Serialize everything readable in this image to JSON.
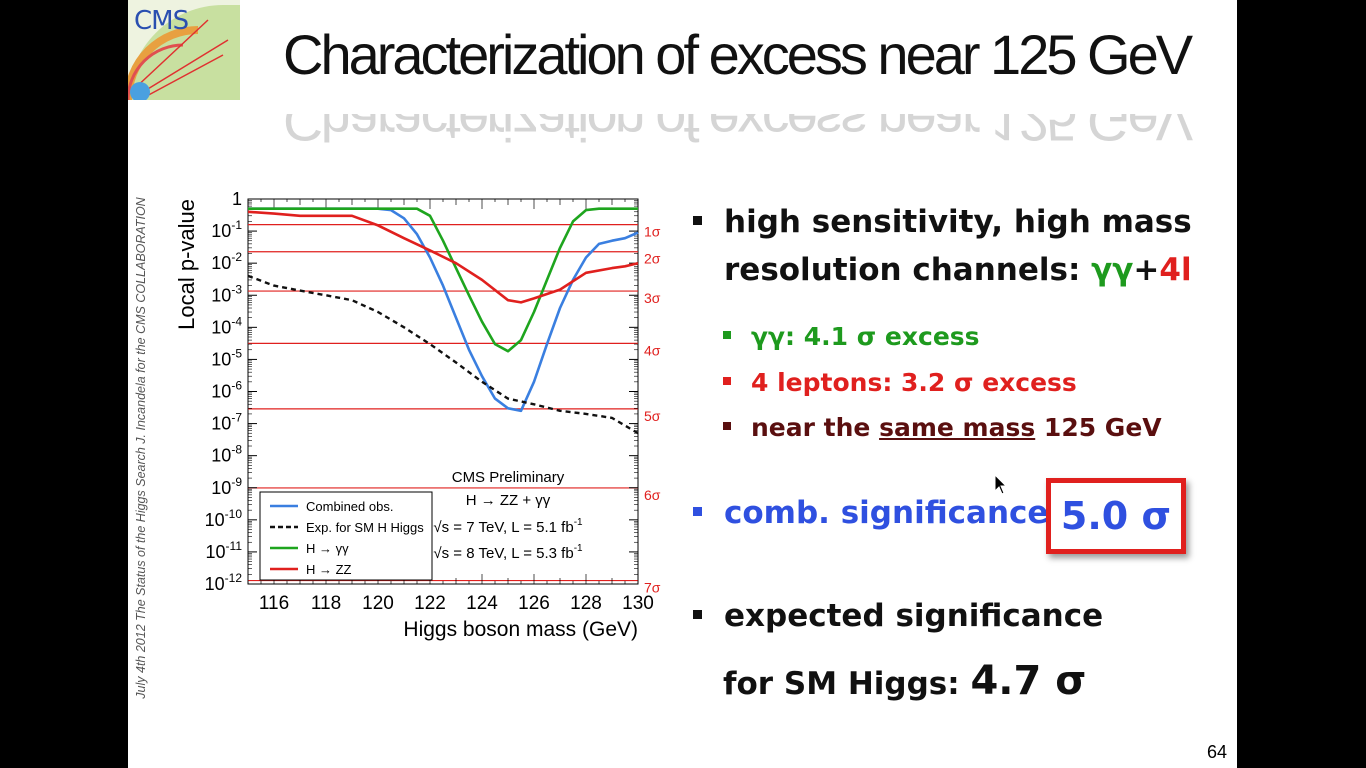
{
  "slide": {
    "logo_text": "CMS",
    "sidebar_text": "July 4th 2012  The Status of the Higgs Search   J. Incandela for the CMS COLLABORATION",
    "title": "Characterization of excess near 125 GeV",
    "page_number": "64"
  },
  "bullets": {
    "b1_line1": "high sensitivity, high mass",
    "b1_line2_prefix": "resolution channels: ",
    "b1_gg": "γγ",
    "b1_plus": "+",
    "b1_4l": "4l",
    "sub1": "γγ:  4.1 σ excess",
    "sub2_prefix": "4 leptons: ",
    "sub2_rest": "3.2 σ excess",
    "sub3_prefix": "near the ",
    "sub3_underline": "same mass",
    "sub3_rest": " 125 GeV",
    "b2": "comb. significance",
    "b2_value": "5.0 σ",
    "b3": "expected significance",
    "b4_prefix": "for SM Higgs: ",
    "b4_value": "4.7 σ"
  },
  "colors": {
    "combined": "#3a7fe0",
    "expected": "#111111",
    "gg": "#1ea51e",
    "zz": "#e0201e",
    "sigma": "#e0201e"
  },
  "chart_data": {
    "type": "line",
    "xlabel": "Higgs boson mass (GeV)",
    "ylabel": "Local p-value",
    "xlim": [
      115,
      130
    ],
    "ylim_log10": [
      -12,
      0
    ],
    "yscale": "log",
    "x_ticks": [
      116,
      118,
      120,
      122,
      124,
      126,
      128,
      130
    ],
    "y_ticks": [
      "1",
      "10-1",
      "10-2",
      "10-3",
      "10-4",
      "10-5",
      "10-6",
      "10-7",
      "10-8",
      "10-9",
      "10-10",
      "10-11",
      "10-12"
    ],
    "sigma_lines": [
      {
        "label": "1σ",
        "p": 0.1587
      },
      {
        "label": "2σ",
        "p": 0.02275
      },
      {
        "label": "3σ",
        "p": 0.00135
      },
      {
        "label": "4σ",
        "p": 3.17e-05
      },
      {
        "label": "5σ",
        "p": 2.87e-07
      },
      {
        "label": "6σ",
        "p": 9.87e-10
      },
      {
        "label": "7σ",
        "p": 1.28e-12
      }
    ],
    "annotation_title": "CMS Preliminary",
    "annotation_channel": "H → ZZ + γγ",
    "annotation_lumi1": "√s = 7 TeV, L = 5.1 fb-1",
    "annotation_lumi2": "√s = 8 TeV, L = 5.3 fb-1",
    "series": [
      {
        "name": "Combined obs.",
        "key": "combined",
        "dash": false,
        "x": [
          115,
          116,
          117,
          118,
          119,
          120,
          120.5,
          121,
          121.5,
          122,
          122.5,
          123,
          123.5,
          124,
          124.5,
          125,
          125.5,
          126,
          126.5,
          127,
          127.5,
          128,
          128.5,
          129,
          129.5,
          130
        ],
        "y": [
          0.5,
          0.5,
          0.5,
          0.5,
          0.5,
          0.5,
          0.45,
          0.25,
          0.08,
          0.015,
          0.002,
          0.0002,
          2e-05,
          3e-06,
          6e-07,
          3e-07,
          2.5e-07,
          2e-06,
          3e-05,
          0.0004,
          0.003,
          0.015,
          0.04,
          0.05,
          0.06,
          0.09
        ]
      },
      {
        "name": "Exp. for SM H Higgs",
        "key": "expected",
        "dash": true,
        "x": [
          115,
          116,
          117,
          118,
          119,
          120,
          121,
          122,
          123,
          124,
          125,
          126,
          127,
          128,
          129,
          130
        ],
        "y": [
          0.004,
          0.002,
          0.0014,
          0.001,
          0.0007,
          0.0003,
          0.0001,
          3e-05,
          8e-06,
          2e-06,
          6e-07,
          4e-07,
          2.5e-07,
          2e-07,
          1.5e-07,
          5e-08
        ]
      },
      {
        "name": "H → γγ",
        "key": "gg",
        "dash": false,
        "x": [
          115,
          116,
          117,
          118,
          119,
          120,
          121,
          121.5,
          122,
          122.5,
          123,
          123.5,
          124,
          124.5,
          125,
          125.5,
          126,
          126.5,
          127,
          127.5,
          128,
          128.5,
          129,
          129.5,
          130
        ],
        "y": [
          0.5,
          0.5,
          0.5,
          0.5,
          0.5,
          0.5,
          0.5,
          0.5,
          0.3,
          0.05,
          0.007,
          0.001,
          0.00015,
          3e-05,
          1.8e-05,
          4e-05,
          0.0003,
          0.003,
          0.03,
          0.2,
          0.45,
          0.5,
          0.5,
          0.5,
          0.5
        ]
      },
      {
        "name": "H → ZZ",
        "key": "zz",
        "dash": false,
        "x": [
          115,
          116,
          117,
          118,
          119,
          120,
          121,
          122,
          123,
          124,
          125,
          125.5,
          126,
          127,
          128,
          129,
          129.5,
          130
        ],
        "y": [
          0.4,
          0.35,
          0.3,
          0.3,
          0.3,
          0.15,
          0.06,
          0.025,
          0.01,
          0.003,
          0.0007,
          0.0006,
          0.0008,
          0.0015,
          0.005,
          0.007,
          0.008,
          0.01
        ]
      }
    ]
  }
}
